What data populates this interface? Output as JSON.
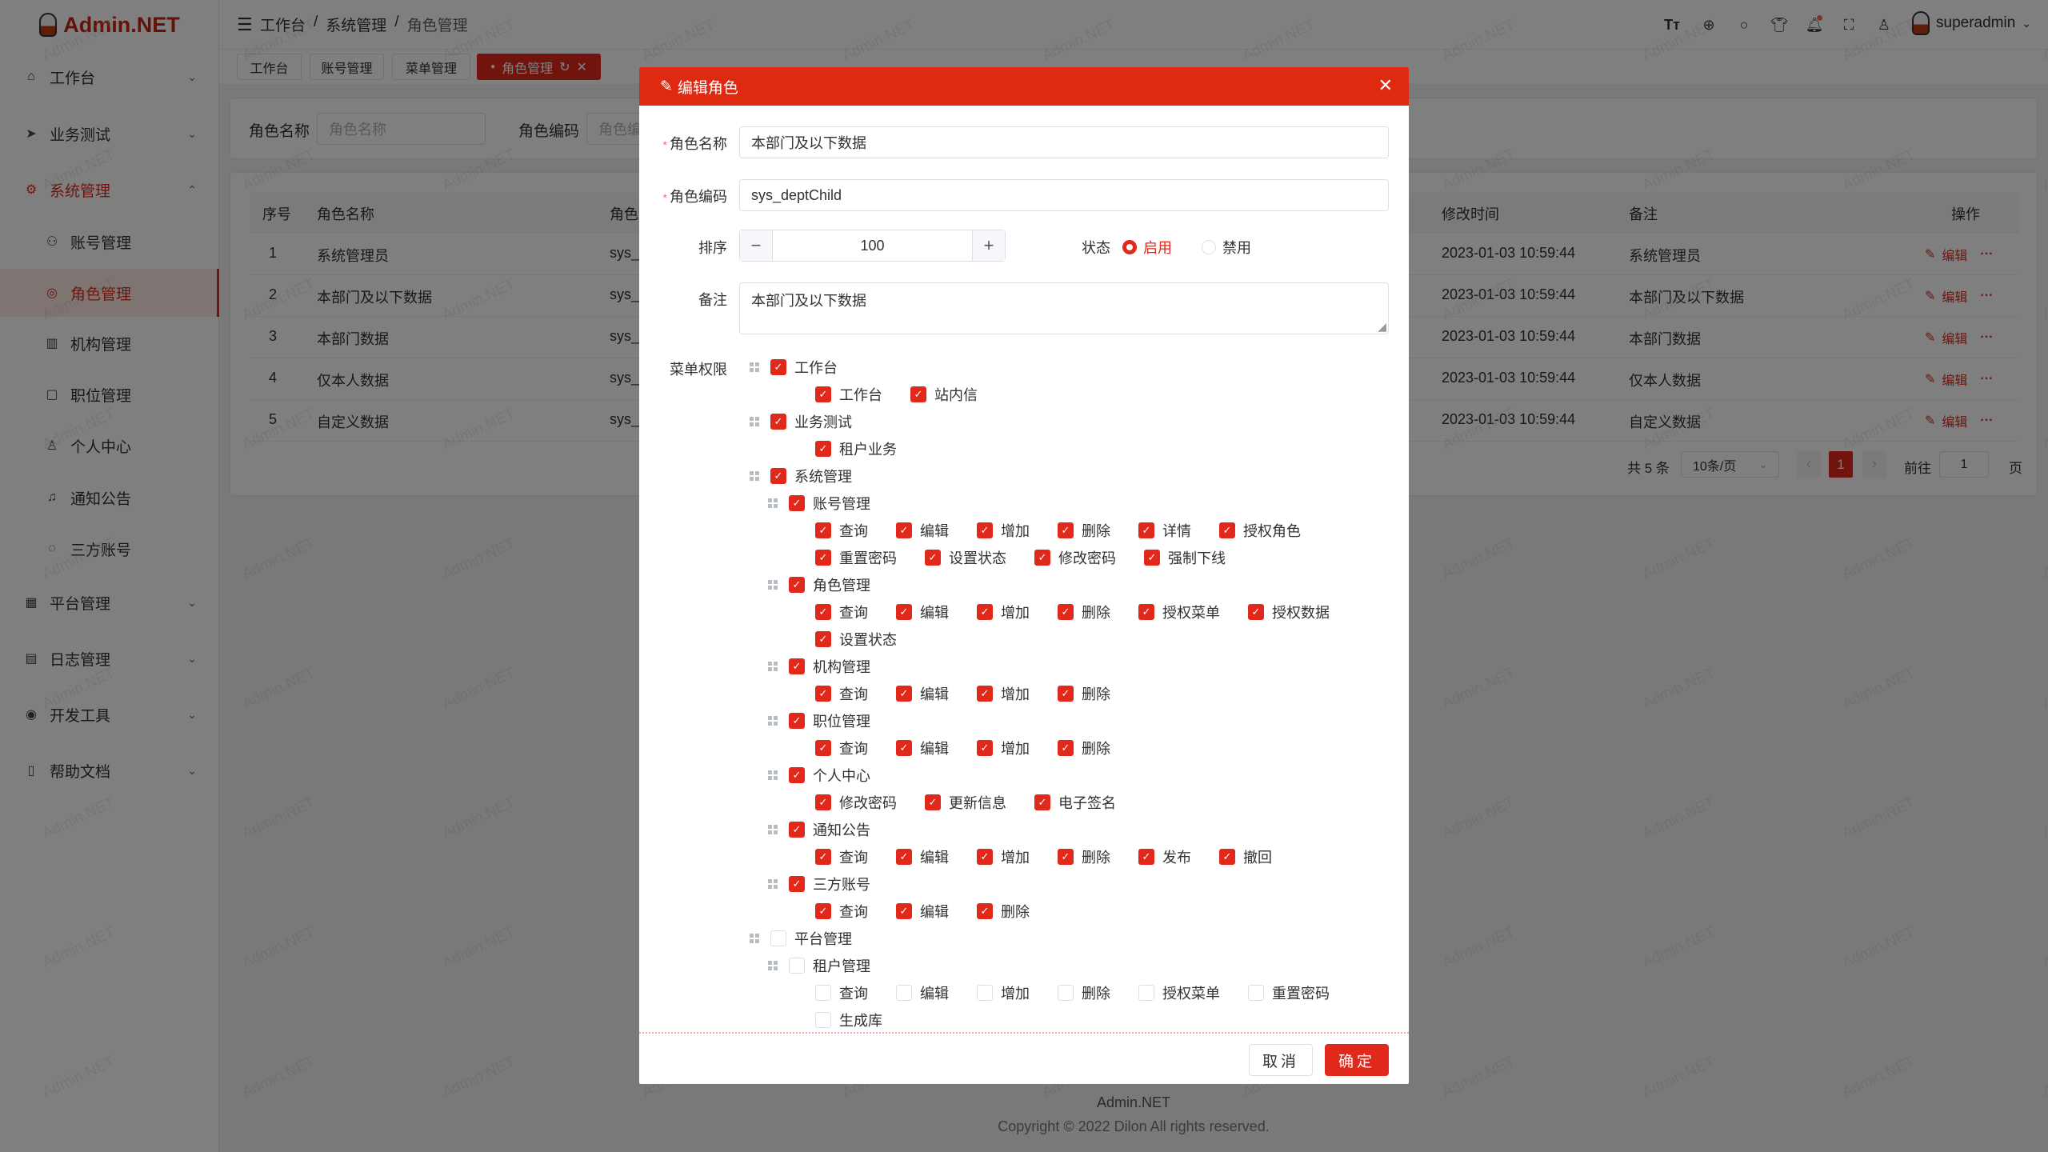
{
  "brand": {
    "name": "Admin.NET",
    "accent": "#e0291a"
  },
  "sidebar": {
    "items": [
      {
        "label": "工作台",
        "icon": "home-icon",
        "glyph": "⌂",
        "top": 66,
        "chev": "⌄"
      },
      {
        "label": "业务测试",
        "icon": "send-icon",
        "glyph": "➤",
        "top": 137,
        "chev": "⌄"
      },
      {
        "label": "系统管理",
        "icon": "gear-icon",
        "glyph": "⚙",
        "top": 207,
        "chev": "⌃",
        "open": true
      },
      {
        "label": "账号管理",
        "icon": "user-icon",
        "glyph": "⚇",
        "top": 272,
        "sub": true
      },
      {
        "label": "角色管理",
        "icon": "role-icon",
        "glyph": "◎",
        "top": 336,
        "sub": true,
        "active": true
      },
      {
        "label": "机构管理",
        "icon": "org-icon",
        "glyph": "▥",
        "top": 399,
        "sub": true
      },
      {
        "label": "职位管理",
        "icon": "position-icon",
        "glyph": "▢",
        "top": 463,
        "sub": true
      },
      {
        "label": "个人中心",
        "icon": "person-icon",
        "glyph": "♙",
        "top": 527,
        "sub": true
      },
      {
        "label": "通知公告",
        "icon": "bell-icon",
        "glyph": "♫",
        "top": 592,
        "sub": true
      },
      {
        "label": "三方账号",
        "icon": "chat-icon",
        "glyph": "◌",
        "top": 656,
        "sub": true
      },
      {
        "label": "平台管理",
        "icon": "grid-icon",
        "glyph": "▦",
        "top": 723,
        "chev": "⌄"
      },
      {
        "label": "日志管理",
        "icon": "log-icon",
        "glyph": "▤",
        "top": 793,
        "chev": "⌄"
      },
      {
        "label": "开发工具",
        "icon": "tool-icon",
        "glyph": "◉",
        "top": 863,
        "chev": "⌄"
      },
      {
        "label": "帮助文档",
        "icon": "doc-icon",
        "glyph": "▯",
        "top": 933,
        "chev": "⌄"
      }
    ]
  },
  "header": {
    "breadcrumb": [
      "工作台",
      "系统管理",
      "角色管理"
    ],
    "separator": "/",
    "icons": [
      "font-size-icon",
      "language-icon",
      "search-icon",
      "skin-icon",
      "bell-icon",
      "fullscreen-icon",
      "user-icon"
    ],
    "user": "superadmin"
  },
  "tabs": [
    {
      "label": "工作台"
    },
    {
      "label": "账号管理"
    },
    {
      "label": "菜单管理"
    },
    {
      "label": "角色管理",
      "active": true
    }
  ],
  "search": {
    "name_label": "角色名称",
    "name_placeholder": "角色名称",
    "code_label": "角色编码",
    "code_placeholder": "角色编码"
  },
  "table": {
    "columns": [
      "序号",
      "角色名称",
      "角色编码",
      "修改时间",
      "备注",
      "操作"
    ],
    "rows": [
      {
        "idx": "1",
        "name": "系统管理员",
        "code": "sys_",
        "time": "2023-01-03 10:59:44",
        "remark": "系统管理员"
      },
      {
        "idx": "2",
        "name": "本部门及以下数据",
        "code": "sys_",
        "time": "2023-01-03 10:59:44",
        "remark": "本部门及以下数据"
      },
      {
        "idx": "3",
        "name": "本部门数据",
        "code": "sys_",
        "time": "2023-01-03 10:59:44",
        "remark": "本部门数据"
      },
      {
        "idx": "4",
        "name": "仅本人数据",
        "code": "sys_",
        "time": "2023-01-03 10:59:44",
        "remark": "仅本人数据"
      },
      {
        "idx": "5",
        "name": "自定义数据",
        "code": "sys_",
        "time": "2023-01-03 10:59:44",
        "remark": "自定义数据"
      }
    ],
    "edit_label": "编辑",
    "more_label": "···"
  },
  "pagination": {
    "total": "共 5 条",
    "page_size": "10条/页",
    "current": "1",
    "goto_label": "前往",
    "goto_value": "1",
    "page_suffix": "页"
  },
  "footer": {
    "name": "Admin.NET",
    "copyright": "Copyright © 2022 Dilon All rights reserved."
  },
  "watermark": "Admin.NET",
  "dialog": {
    "title": "编辑角色",
    "name_label": "角色名称",
    "name_value": "本部门及以下数据",
    "code_label": "角色编码",
    "code_value": "sys_deptChild",
    "order_label": "排序",
    "order_value": "100",
    "status_label": "状态",
    "status_options": [
      "启用",
      "禁用"
    ],
    "status_selected": "启用",
    "remark_label": "备注",
    "remark_value": "本部门及以下数据",
    "menu_label": "菜单权限",
    "tree": [
      {
        "label": "工作台",
        "checked": true,
        "leaves": [
          "工作台",
          "站内信"
        ]
      },
      {
        "label": "业务测试",
        "checked": true,
        "leaves": [
          "租户业务"
        ]
      },
      {
        "label": "系统管理",
        "checked": true,
        "children": [
          {
            "label": "账号管理",
            "checked": true,
            "leaves": [
              "查询",
              "编辑",
              "增加",
              "删除",
              "详情",
              "授权角色",
              "重置密码",
              "设置状态",
              "修改密码",
              "强制下线"
            ]
          },
          {
            "label": "角色管理",
            "checked": true,
            "leaves": [
              "查询",
              "编辑",
              "增加",
              "删除",
              "授权菜单",
              "授权数据",
              "设置状态"
            ]
          },
          {
            "label": "机构管理",
            "checked": true,
            "leaves": [
              "查询",
              "编辑",
              "增加",
              "删除"
            ]
          },
          {
            "label": "职位管理",
            "checked": true,
            "leaves": [
              "查询",
              "编辑",
              "增加",
              "删除"
            ]
          },
          {
            "label": "个人中心",
            "checked": true,
            "leaves": [
              "修改密码",
              "更新信息",
              "电子签名"
            ]
          },
          {
            "label": "通知公告",
            "checked": true,
            "leaves": [
              "查询",
              "编辑",
              "增加",
              "删除",
              "发布",
              "撤回"
            ]
          },
          {
            "label": "三方账号",
            "checked": true,
            "leaves": [
              "查询",
              "编辑",
              "删除"
            ]
          }
        ]
      },
      {
        "label": "平台管理",
        "checked": false,
        "children": [
          {
            "label": "租户管理",
            "checked": false,
            "leaves": [
              "查询",
              "编辑",
              "增加",
              "删除",
              "授权菜单",
              "重置密码",
              "生成库"
            ]
          }
        ]
      }
    ],
    "cancel_label": "取消",
    "confirm_label": "确定"
  }
}
